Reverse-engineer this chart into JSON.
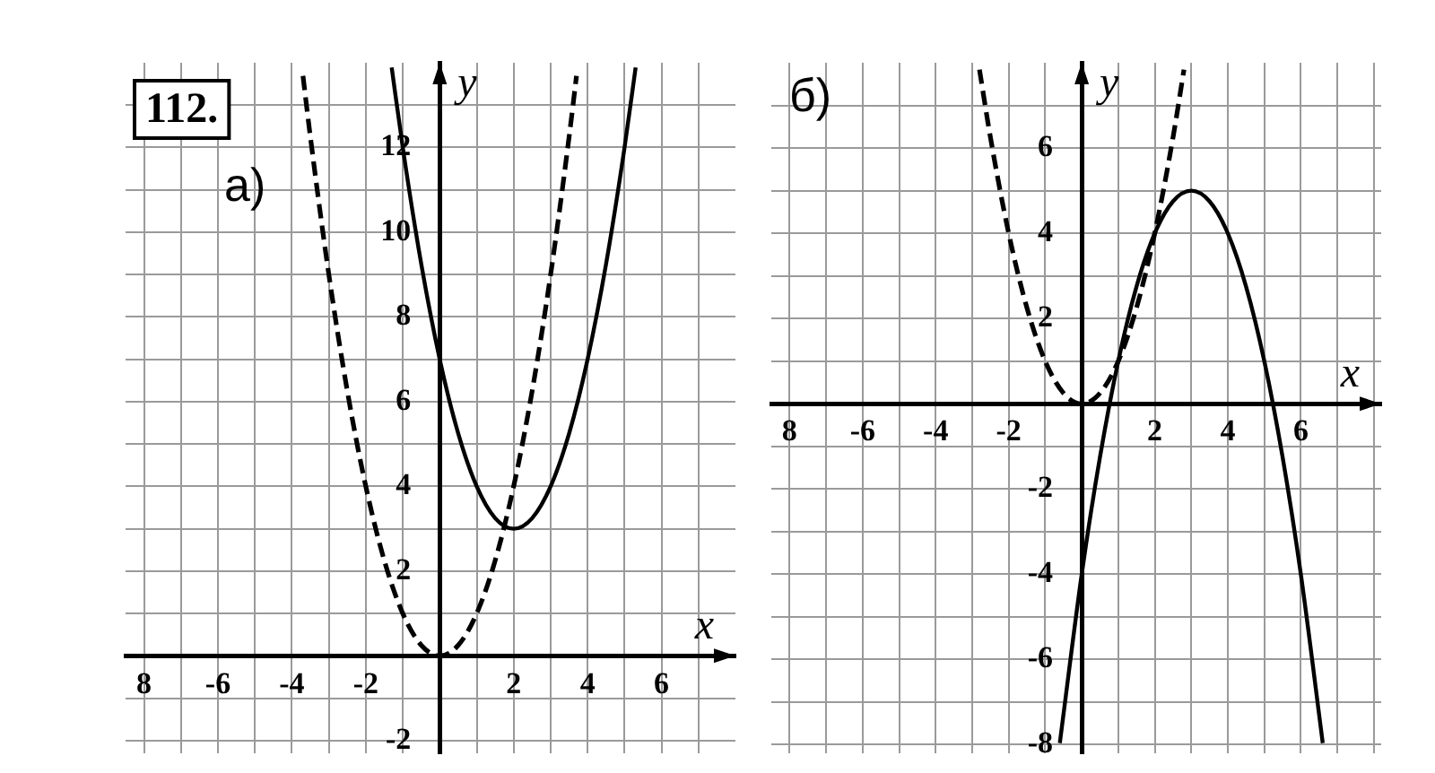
{
  "chart_data": [
    {
      "type": "line",
      "title": "а)",
      "xlabel": "x",
      "ylabel": "y",
      "annotations": [
        "112."
      ],
      "xlim": [
        -8.5,
        8
      ],
      "ylim": [
        -2.3,
        14
      ],
      "xticks": [
        {
          "value": -8,
          "label": "8"
        },
        {
          "value": -7,
          "label": null
        },
        -6,
        {
          "value": -5,
          "label": null
        },
        -4,
        {
          "value": -3,
          "label": null
        },
        -2,
        {
          "value": -1,
          "label": null
        },
        {
          "value": 0,
          "label": null
        },
        {
          "value": 1,
          "label": null
        },
        2,
        {
          "value": 3,
          "label": null
        },
        4,
        {
          "value": 5,
          "label": null
        },
        6,
        {
          "value": 7,
          "label": null
        }
      ],
      "yticks": [
        -2,
        {
          "value": -1,
          "label": null
        },
        {
          "value": 0,
          "label": null
        },
        {
          "value": 1,
          "label": null
        },
        2,
        {
          "value": 3,
          "label": null
        },
        4,
        {
          "value": 5,
          "label": null
        },
        6,
        {
          "value": 7,
          "label": null
        },
        8,
        {
          "value": 9,
          "label": null
        },
        10,
        {
          "value": 11,
          "label": null
        },
        12,
        {
          "value": 13,
          "label": null
        }
      ],
      "grid": true,
      "legend": false,
      "marker": "none",
      "series": [
        {
          "color": "#000000",
          "line_style": "dashed",
          "x": [
            -3.7,
            -3.5,
            -3,
            -2.5,
            -2,
            -1.5,
            -1,
            -0.5,
            0,
            0.5,
            1,
            1.5,
            2,
            2.5,
            3,
            3.5,
            3.7
          ],
          "values": [
            13.69,
            12.25,
            9,
            6.25,
            4,
            2.25,
            1,
            0.25,
            0,
            0.25,
            1,
            2.25,
            4,
            6.25,
            9,
            12.25,
            13.69
          ]
        },
        {
          "color": "#000000",
          "line_style": "solid",
          "x": [
            -1.3,
            -1,
            -0.5,
            0,
            0.5,
            1,
            1.5,
            2,
            2.5,
            3,
            3.5,
            4,
            4.5,
            5,
            5.3
          ],
          "values": [
            13.89,
            12,
            9.25,
            7,
            5.25,
            4,
            3.25,
            3,
            3.25,
            4,
            5.25,
            7,
            9.25,
            12,
            13.89
          ]
        }
      ]
    },
    {
      "type": "line",
      "title": "б)",
      "xlabel": "x",
      "ylabel": "y",
      "xlim": [
        -8.5,
        8.2
      ],
      "ylim": [
        -8.2,
        8
      ],
      "xticks": [
        {
          "value": -8,
          "label": "8"
        },
        {
          "value": -7,
          "label": null
        },
        -6,
        {
          "value": -5,
          "label": null
        },
        -4,
        {
          "value": -3,
          "label": null
        },
        -2,
        {
          "value": -1,
          "label": null
        },
        {
          "value": 0,
          "label": null
        },
        {
          "value": 1,
          "label": null
        },
        2,
        {
          "value": 3,
          "label": null
        },
        4,
        {
          "value": 5,
          "label": null
        },
        6,
        {
          "value": 7,
          "label": null
        },
        {
          "value": 8,
          "label": null
        }
      ],
      "yticks": [
        -8,
        {
          "value": -7,
          "label": null
        },
        -6,
        {
          "value": -5,
          "label": null
        },
        -4,
        {
          "value": -3,
          "label": null
        },
        -2,
        {
          "value": -1,
          "label": null
        },
        {
          "value": 0,
          "label": null
        },
        {
          "value": 1,
          "label": null
        },
        2,
        {
          "value": 3,
          "label": null
        },
        4,
        {
          "value": 5,
          "label": null
        },
        6,
        {
          "value": 7,
          "label": null
        }
      ],
      "grid": true,
      "legend": false,
      "marker": "none",
      "series": [
        {
          "color": "#000000",
          "line_style": "dashed",
          "x": [
            -2.8,
            -2.5,
            -2,
            -1.5,
            -1,
            -0.5,
            0,
            0.5,
            1,
            1.5,
            2,
            2.5,
            2.8
          ],
          "values": [
            7.84,
            6.25,
            4,
            2.25,
            1,
            0.25,
            0,
            0.25,
            1,
            2.25,
            4,
            6.25,
            7.84
          ]
        },
        {
          "color": "#000000",
          "line_style": "solid",
          "x": [
            -0.6,
            0,
            0.5,
            1,
            1.5,
            2,
            2.5,
            3,
            3.5,
            4,
            4.5,
            5,
            5.5,
            6,
            6.6
          ],
          "values": [
            -7.96,
            -4,
            -1.25,
            1,
            2.75,
            4,
            4.75,
            5,
            4.75,
            4,
            2.75,
            1,
            -1.25,
            -4,
            -7.96
          ]
        }
      ]
    }
  ]
}
